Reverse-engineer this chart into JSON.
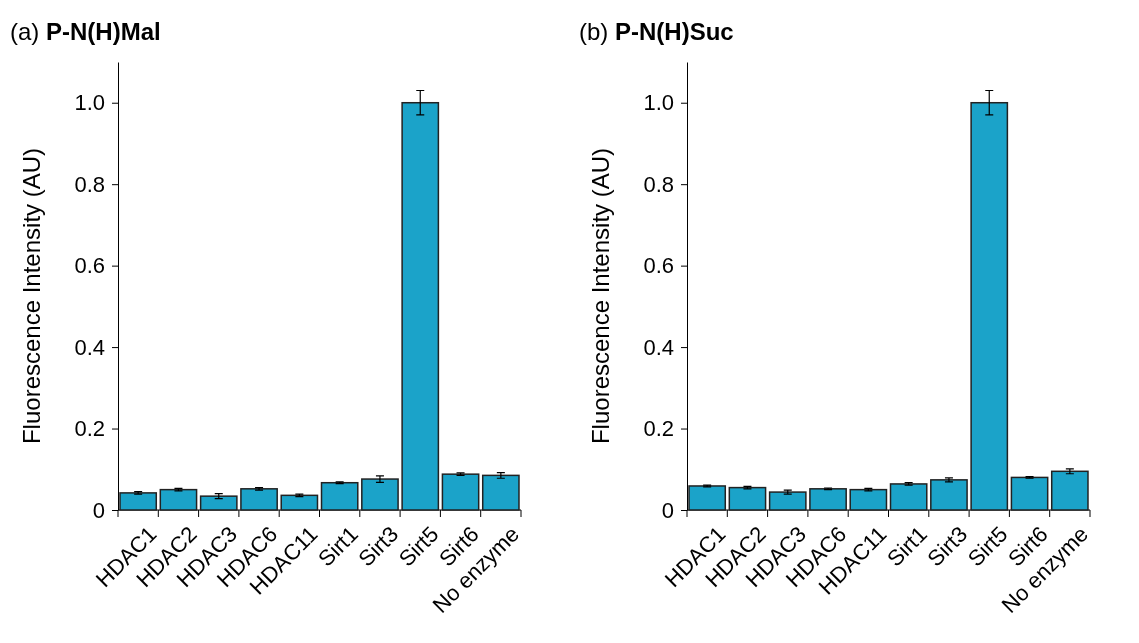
{
  "chart_data": [
    {
      "type": "bar",
      "title": "(a) P-N(H)Mal",
      "ylabel": "Fluorescence Intensity (AU)",
      "categories": [
        "HDAC1",
        "HDAC2",
        "HDAC3",
        "HDAC6",
        "HDAC11",
        "Sirt1",
        "Sirt3",
        "Sirt5",
        "Sirt6",
        "No enzyme"
      ],
      "series": [
        {
          "color": "#1ba3c9",
          "values": [
            0.042,
            0.05,
            0.034,
            0.052,
            0.036,
            0.067,
            0.076,
            1.0,
            0.088,
            0.085
          ],
          "errors": [
            0.003,
            0.003,
            0.006,
            0.003,
            0.003,
            0.002,
            0.008,
            0.03,
            0.003,
            0.007
          ]
        }
      ],
      "ylim": [
        0,
        1.1
      ],
      "yticks": [
        0,
        0.2,
        0.4,
        0.6,
        0.8,
        {
          "value": 1,
          "label": "1.0"
        }
      ]
    },
    {
      "type": "bar",
      "title": "(b) P-N(H)Suc",
      "ylabel": "Fluorescence Intensity (AU)",
      "categories": [
        "HDAC1",
        "HDAC2",
        "HDAC3",
        "HDAC6",
        "HDAC11",
        "Sirt1",
        "Sirt3",
        "Sirt5",
        "Sirt6",
        "No enzyme"
      ],
      "series": [
        {
          "color": "#1ba3c9",
          "values": [
            0.059,
            0.055,
            0.044,
            0.052,
            0.05,
            0.064,
            0.074,
            1.0,
            0.08,
            0.095
          ],
          "errors": [
            0.002,
            0.003,
            0.005,
            0.002,
            0.003,
            0.003,
            0.005,
            0.03,
            0.002,
            0.006
          ]
        }
      ],
      "ylim": [
        0,
        1.1
      ],
      "yticks": [
        0,
        0.2,
        0.4,
        0.6,
        0.8,
        {
          "value": 1,
          "label": "1.0"
        }
      ]
    }
  ]
}
